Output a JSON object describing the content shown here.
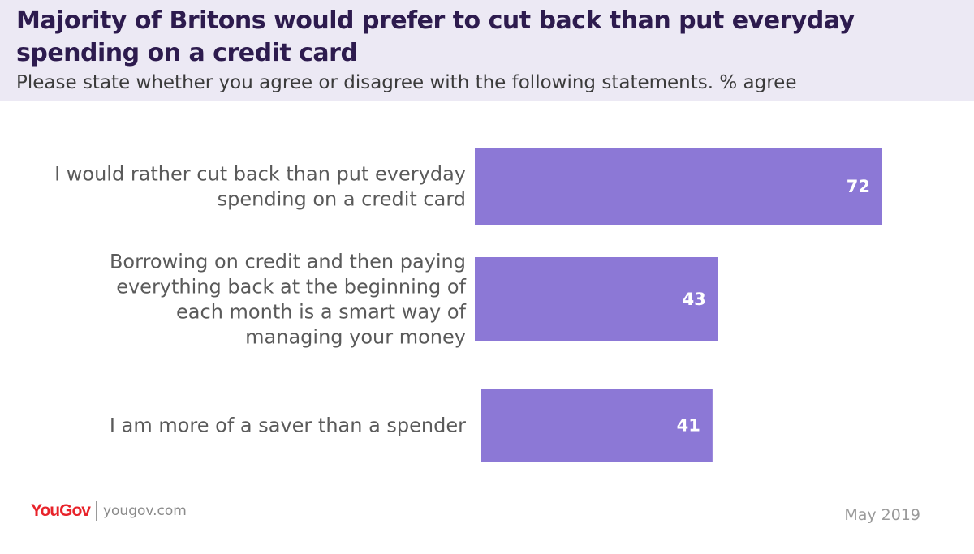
{
  "header": {
    "title": "Majority of Britons would prefer to cut back than put everyday spending on a credit card",
    "subtitle": "Please state whether you agree or disagree with the following statements. % agree"
  },
  "colors": {
    "bar": "#8c78d6",
    "header_bg": "#ece9f4",
    "title": "#2d1b4e",
    "brand_red": "#e8232a"
  },
  "chart_data": {
    "type": "bar",
    "orientation": "horizontal",
    "categories": [
      "I would rather cut back than put everyday spending on a credit card",
      "Borrowing on credit and then paying everything back at the beginning of each month is a smart way of managing your money",
      "I am more of a saver than a spender"
    ],
    "category_lines": [
      [
        "I would rather cut back than put everyday",
        "spending on a credit card"
      ],
      [
        "Borrowing on credit and then paying",
        "everything back at the beginning of",
        "each month is a smart way of",
        "managing your money"
      ],
      [
        "I am more of a saver than a spender"
      ]
    ],
    "values": [
      72,
      43,
      41
    ],
    "value_labels": [
      "72",
      "43",
      "41"
    ],
    "unit": "% agree",
    "xlim": [
      0,
      100
    ],
    "grid": false,
    "legend": "none"
  },
  "footer": {
    "logo_text": "YouGov",
    "url": "yougov.com",
    "date": "May 2019"
  }
}
